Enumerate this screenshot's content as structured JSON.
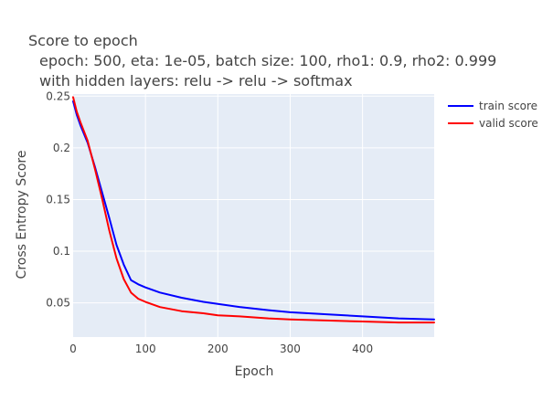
{
  "chart_data": {
    "type": "line",
    "title": "Score to epoch",
    "subtitle_lines": [
      "epoch: 500, eta: 1e-05, batch size: 100, rho1: 0.9, rho2: 0.999",
      "with hidden layers: relu -> relu -> softmax"
    ],
    "xlabel": "Epoch",
    "ylabel": "Cross Entropy Score",
    "xlim": [
      0,
      499
    ],
    "ylim": [
      0.017,
      0.252
    ],
    "x_ticks": [
      0,
      100,
      200,
      300,
      400
    ],
    "y_ticks": [
      0.05,
      0.1,
      0.15,
      0.2,
      0.25
    ],
    "grid": true,
    "legend_position": "top-right outside",
    "background": "#e5ecf6",
    "series": [
      {
        "name": "train score",
        "color": "#0000ff",
        "x": [
          0,
          5,
          10,
          20,
          30,
          40,
          50,
          60,
          70,
          80,
          90,
          100,
          120,
          150,
          180,
          200,
          230,
          270,
          300,
          350,
          400,
          450,
          499
        ],
        "y": [
          0.245,
          0.232,
          0.222,
          0.205,
          0.182,
          0.157,
          0.132,
          0.106,
          0.087,
          0.072,
          0.068,
          0.065,
          0.06,
          0.055,
          0.051,
          0.049,
          0.046,
          0.043,
          0.041,
          0.039,
          0.037,
          0.035,
          0.034
        ]
      },
      {
        "name": "valid score",
        "color": "#ff0000",
        "x": [
          0,
          5,
          10,
          20,
          30,
          40,
          50,
          60,
          70,
          80,
          90,
          100,
          120,
          150,
          180,
          200,
          230,
          270,
          300,
          350,
          400,
          450,
          499
        ],
        "y": [
          0.249,
          0.235,
          0.225,
          0.207,
          0.18,
          0.151,
          0.12,
          0.093,
          0.073,
          0.06,
          0.054,
          0.051,
          0.046,
          0.042,
          0.04,
          0.038,
          0.037,
          0.035,
          0.034,
          0.033,
          0.032,
          0.031,
          0.031
        ]
      }
    ]
  }
}
